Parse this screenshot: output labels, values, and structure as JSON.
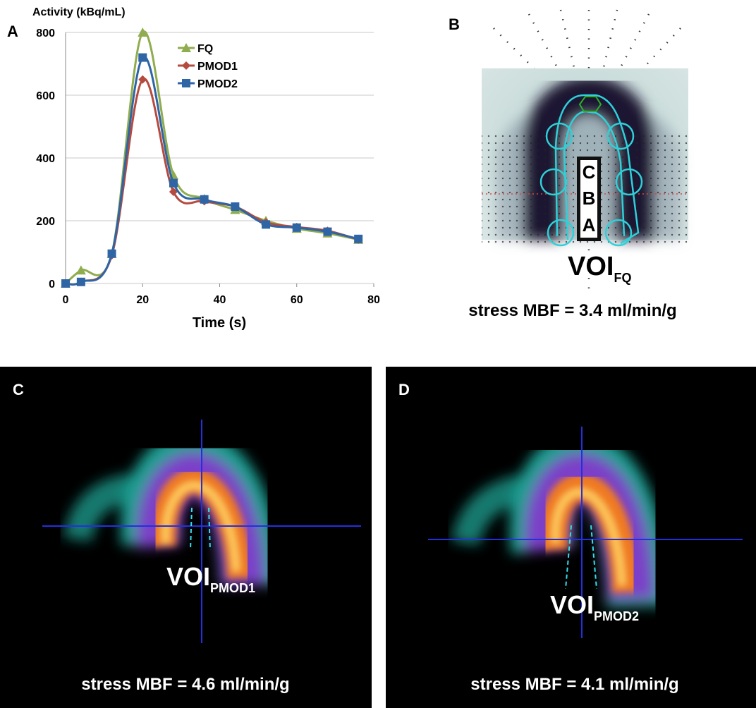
{
  "chart_data": {
    "type": "line",
    "panel_label": "A",
    "y_axis_label": "Activity (kBq/mL)",
    "x_axis_label": "Time (s)",
    "x": [
      0,
      4,
      12,
      20,
      28,
      36,
      44,
      52,
      60,
      68,
      76
    ],
    "series": [
      {
        "name": "FQ",
        "color": "#8fac4f",
        "marker": "triangle",
        "values": [
          0,
          42,
          95,
          800,
          345,
          270,
          235,
          200,
          175,
          160,
          140
        ]
      },
      {
        "name": "PMOD1",
        "color": "#b54a3f",
        "marker": "diamond",
        "values": [
          0,
          5,
          90,
          650,
          292,
          262,
          245,
          195,
          180,
          168,
          140
        ]
      },
      {
        "name": "PMOD2",
        "color": "#2f64a5",
        "marker": "square",
        "values": [
          0,
          5,
          95,
          720,
          320,
          268,
          245,
          188,
          178,
          165,
          142
        ]
      }
    ],
    "xlim": [
      0,
      80
    ],
    "xticks": [
      0,
      20,
      40,
      60,
      80
    ],
    "ylim": [
      0,
      800
    ],
    "yticks": [
      0,
      200,
      400,
      600,
      800
    ],
    "grid": true
  },
  "panels": {
    "B": {
      "label": "B",
      "segments": [
        "C",
        "B",
        "A"
      ],
      "voi": "VOI",
      "voi_sub": "FQ",
      "caption": "stress MBF = 3.4 ml/min/g"
    },
    "C": {
      "label": "C",
      "voi": "VOI",
      "voi_sub": "PMOD1",
      "caption": "stress MBF = 4.6 ml/min/g"
    },
    "D": {
      "label": "D",
      "voi": "VOI",
      "voi_sub": "PMOD2",
      "caption": "stress MBF = 4.1 ml/min/g"
    }
  }
}
